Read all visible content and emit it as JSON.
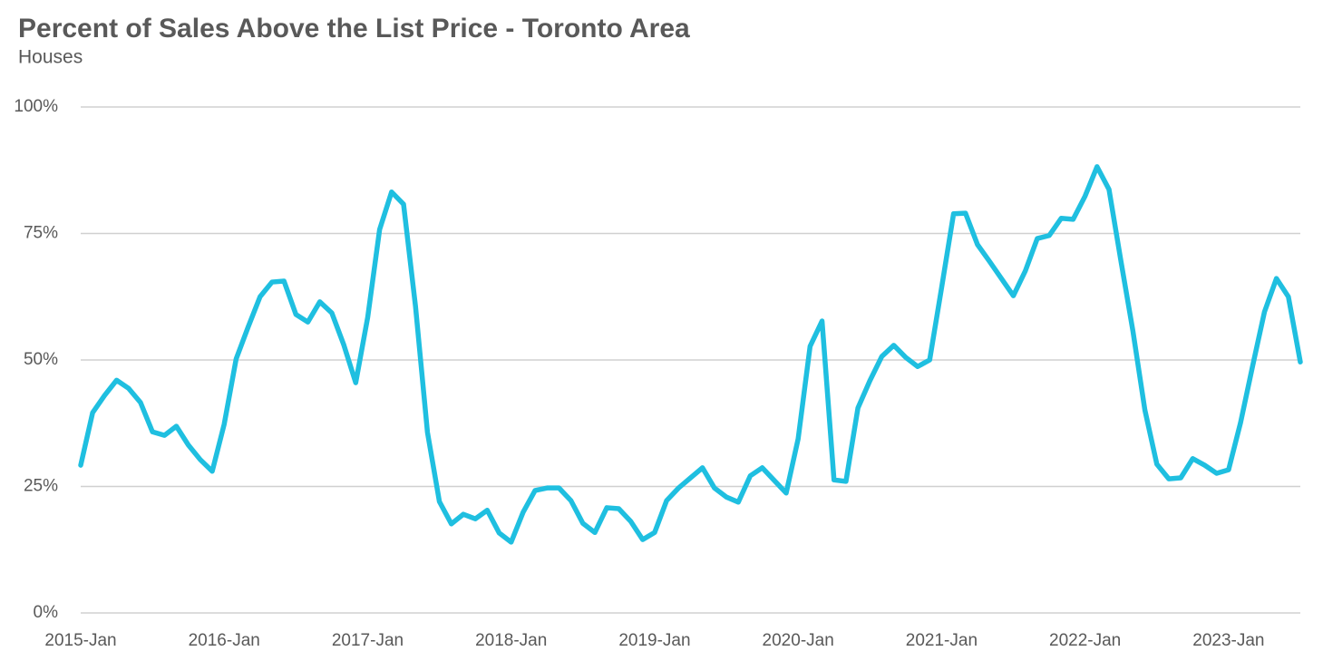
{
  "chart_data": {
    "type": "line",
    "title": "Percent of Sales Above the List Price - Toronto Area",
    "subtitle": "Houses",
    "categories": [
      "2015-Jan",
      null,
      null,
      null,
      null,
      null,
      null,
      null,
      null,
      null,
      null,
      null,
      "2016-Jan",
      null,
      null,
      null,
      null,
      null,
      null,
      null,
      null,
      null,
      null,
      null,
      "2017-Jan",
      null,
      null,
      null,
      null,
      null,
      null,
      null,
      null,
      null,
      null,
      null,
      "2018-Jan",
      null,
      null,
      null,
      null,
      null,
      null,
      null,
      null,
      null,
      null,
      null,
      "2019-Jan",
      null,
      null,
      null,
      null,
      null,
      null,
      null,
      null,
      null,
      null,
      null,
      "2020-Jan",
      null,
      null,
      null,
      null,
      null,
      null,
      null,
      null,
      null,
      null,
      null,
      "2021-Jan",
      null,
      null,
      null,
      null,
      null,
      null,
      null,
      null,
      null,
      null,
      null,
      "2022-Jan",
      null,
      null,
      null,
      null,
      null,
      null,
      null,
      null,
      null,
      null,
      null,
      "2023-Jan",
      null,
      null,
      null,
      null,
      null,
      null
    ],
    "series": [
      {
        "name": "Houses",
        "color": "#1fbfe0",
        "values": [
          29.2,
          39.6,
          43,
          46,
          44.4,
          41.6,
          35.8,
          35.1,
          36.9,
          33.2,
          30.3,
          28,
          37.3,
          50.2,
          56.5,
          62.5,
          65.4,
          65.6,
          59,
          57.5,
          61.5,
          59.3,
          53,
          45.5,
          58.4,
          75.8,
          83.2,
          80.8,
          60.6,
          35.7,
          22,
          17.6,
          19.5,
          18.6,
          20.3,
          15.8,
          14,
          19.9,
          24.2,
          24.7,
          24.7,
          22.2,
          17.7,
          15.9,
          20.8,
          20.6,
          18.1,
          14.5,
          15.9,
          22.2,
          24.7,
          26.7,
          28.7,
          24.7,
          22.9,
          21.9,
          27.1,
          28.7,
          26.2,
          23.7,
          34.4,
          52.7,
          57.7,
          26.3,
          26,
          40.5,
          45.9,
          50.7,
          52.9,
          50.5,
          48.7,
          50,
          64.3,
          78.9,
          79,
          72.8,
          69.5,
          66.1,
          62.7,
          67.6,
          74,
          74.6,
          78,
          77.8,
          82.4,
          88.2,
          83.7,
          69.5,
          55.7,
          40.1,
          29.4,
          26.5,
          26.7,
          30.5,
          29.2,
          27.6,
          28.3,
          37.6,
          48.7,
          59.5,
          66.1,
          62.5,
          49.6
        ]
      }
    ],
    "ylim": [
      0,
      100
    ],
    "yticks": [
      {
        "value": 0,
        "label": "0%"
      },
      {
        "value": 25,
        "label": "25%"
      },
      {
        "value": 50,
        "label": "50%"
      },
      {
        "value": 75,
        "label": "75%"
      },
      {
        "value": 100,
        "label": "100%"
      }
    ],
    "grid": true
  }
}
